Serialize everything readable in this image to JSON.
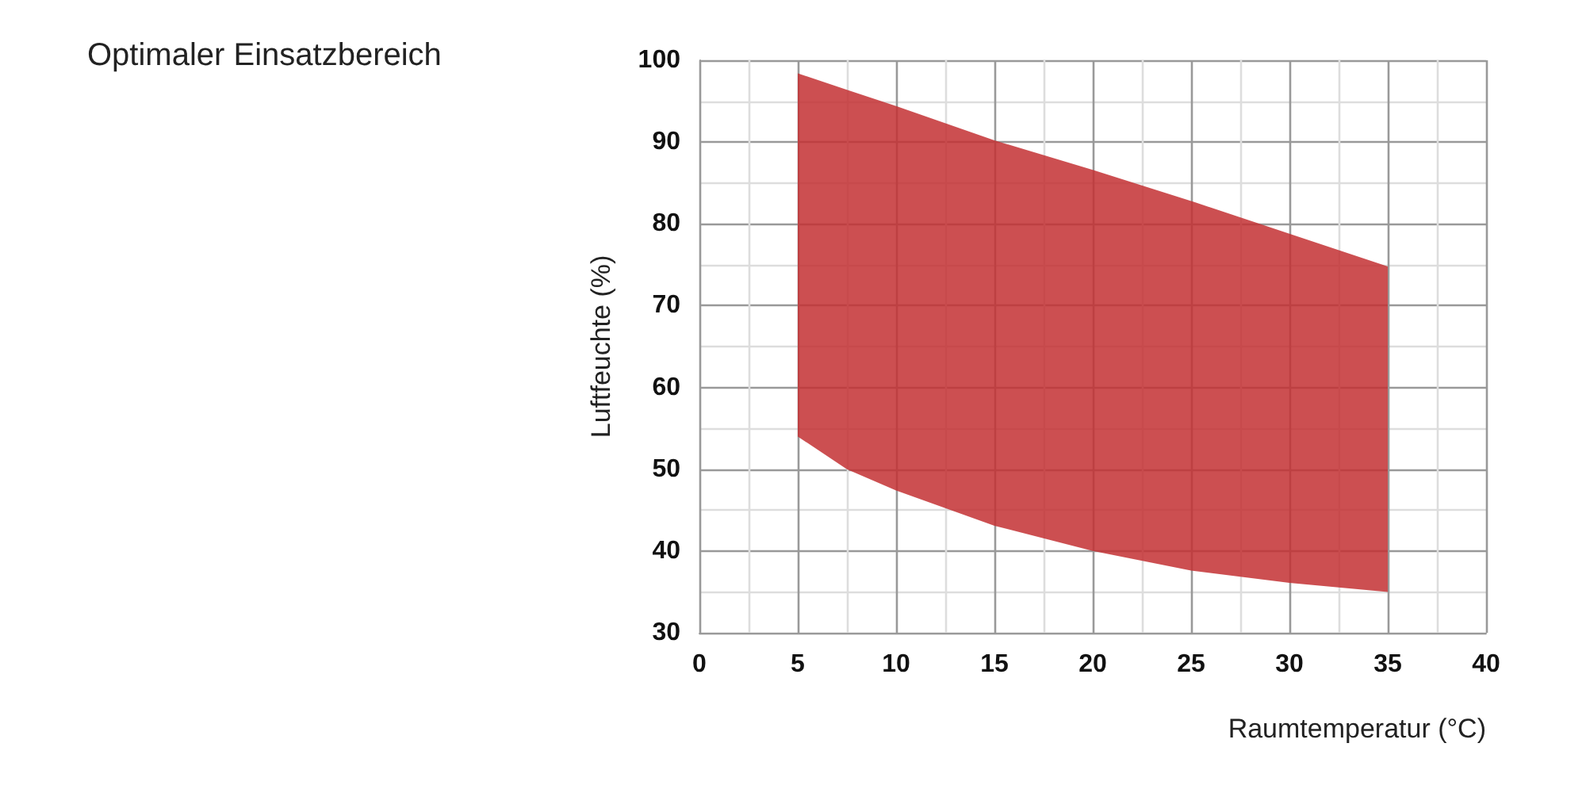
{
  "chart_data": {
    "type": "area",
    "title": "Optimaler Einsatzbereich",
    "xlabel": "Raumtemperatur (°C)",
    "ylabel": "Luftfeuchte (%)",
    "series": [
      {
        "color": "#c33032",
        "x": [
          5,
          7.5,
          10,
          15,
          20,
          25,
          30,
          35
        ],
        "values": [
          null,
          null,
          null,
          null,
          null,
          null,
          null,
          null
        ],
        "lower": [
          54,
          50,
          47.4,
          43.1,
          40,
          37.6,
          36.1,
          35
        ],
        "upper": [
          98.4,
          96.4,
          94.4,
          90.2,
          86.6,
          82.8,
          78.8,
          74.8
        ]
      }
    ],
    "xlim": [
      0,
      40
    ],
    "xticks": [
      0,
      5,
      10,
      15,
      20,
      25,
      30,
      35,
      40
    ],
    "ylim": [
      30,
      100
    ],
    "yticks": [
      30,
      40,
      50,
      60,
      70,
      80,
      90,
      100
    ],
    "grid": true
  }
}
